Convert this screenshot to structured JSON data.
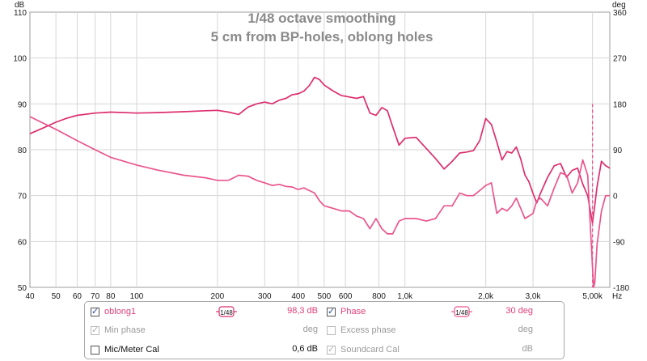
{
  "chart_data": {
    "type": "line",
    "title": "1/48 octave smoothing",
    "subtitle": "5 cm from BP-holes, oblong holes",
    "x_scale": "log",
    "xlim": [
      40,
      5800
    ],
    "ylim": [
      50,
      110
    ],
    "y2lim": [
      -180,
      360
    ],
    "ylabel": "dB",
    "y2label": "deg",
    "xlabel_unit": "Hz",
    "grid": true,
    "x_ticks": [
      "40",
      "50",
      "60",
      "70",
      "80",
      "100",
      "200",
      "300",
      "400",
      "500",
      "600",
      "800",
      "1,0k",
      "2,0k",
      "3,0k",
      "5,00k"
    ],
    "x_tick_values": [
      40,
      50,
      60,
      70,
      80,
      100,
      200,
      300,
      400,
      500,
      600,
      800,
      1000,
      2000,
      3000,
      5000
    ],
    "y_ticks": [
      50,
      60,
      70,
      80,
      90,
      100,
      110
    ],
    "y2_ticks": [
      -180,
      -90,
      0,
      90,
      180,
      270,
      360
    ],
    "series": [
      {
        "name": "oblong1",
        "axis": "left",
        "color": "#dd2e6e",
        "x": [
          40,
          45,
          50,
          55,
          60,
          70,
          80,
          100,
          120,
          150,
          180,
          200,
          220,
          240,
          260,
          280,
          300,
          320,
          340,
          360,
          380,
          400,
          420,
          440,
          460,
          480,
          500,
          540,
          580,
          620,
          660,
          700,
          740,
          780,
          820,
          860,
          900,
          950,
          1000,
          1100,
          1200,
          1300,
          1400,
          1500,
          1600,
          1700,
          1800,
          1900,
          2000,
          2100,
          2200,
          2300,
          2400,
          2500,
          2600,
          2700,
          2800,
          2900,
          3000,
          3100,
          3200,
          3400,
          3600,
          3800,
          4000,
          4200,
          4400,
          4600,
          4800,
          5000,
          5100,
          5200,
          5400,
          5600,
          5800
        ],
        "values": [
          83.5,
          84.8,
          86.0,
          86.9,
          87.5,
          88.0,
          88.2,
          88.0,
          88.1,
          88.3,
          88.5,
          88.6,
          88.2,
          87.7,
          89.3,
          90.0,
          90.4,
          90.0,
          90.8,
          91.2,
          92.0,
          92.2,
          92.8,
          94.0,
          95.8,
          95.3,
          94.1,
          92.8,
          91.8,
          91.5,
          91.2,
          91.6,
          88.0,
          87.5,
          89.2,
          88.5,
          85.0,
          81.0,
          82.5,
          82.7,
          80.3,
          78.1,
          75.8,
          77.5,
          79.3,
          79.5,
          79.8,
          82.0,
          86.8,
          85.5,
          81.7,
          77.8,
          79.6,
          79.3,
          80.6,
          78.0,
          74.5,
          73.0,
          70.5,
          68.4,
          70.5,
          74.0,
          76.5,
          77.0,
          74.0,
          75.5,
          76.0,
          72.5,
          70.0,
          64.0,
          68.0,
          72.0,
          77.5,
          76.5,
          76.0
        ]
      },
      {
        "name": "Phase",
        "axis": "right",
        "color": "#e9558d",
        "x": [
          40,
          50,
          60,
          70,
          80,
          100,
          120,
          150,
          180,
          200,
          220,
          240,
          260,
          280,
          300,
          320,
          340,
          360,
          380,
          400,
          420,
          440,
          460,
          480,
          500,
          540,
          580,
          620,
          660,
          700,
          740,
          780,
          820,
          860,
          900,
          950,
          1000,
          1100,
          1200,
          1300,
          1400,
          1500,
          1600,
          1700,
          1800,
          1900,
          2000,
          2100,
          2200,
          2300,
          2400,
          2500,
          2600,
          2700,
          2800,
          2900,
          3000,
          3100,
          3200,
          3400,
          3600,
          3800,
          4000,
          4200,
          4400,
          4600,
          4800,
          5000,
          5050,
          5100,
          5200,
          5400,
          5600,
          5800
        ],
        "values": [
          155,
          130,
          108,
          90,
          75,
          60,
          50,
          40,
          35,
          30,
          30,
          40,
          38,
          30,
          25,
          20,
          22,
          18,
          17,
          12,
          15,
          10,
          5,
          -10,
          -20,
          -25,
          -30,
          -30,
          -40,
          -45,
          -65,
          -45,
          -65,
          -75,
          -75,
          -50,
          -45,
          -45,
          -50,
          -45,
          -20,
          -20,
          5,
          0,
          0,
          10,
          20,
          25,
          -35,
          -25,
          -30,
          -20,
          -5,
          -25,
          -45,
          -40,
          -35,
          -10,
          -5,
          -20,
          15,
          45,
          40,
          5,
          25,
          70,
          40,
          -140,
          -180,
          -170,
          -95,
          -30,
          0,
          0
        ]
      }
    ]
  },
  "legend": {
    "rows": [
      {
        "left_label": "oblong1",
        "left_value": "98,3 dB",
        "left_smoothing": "1/48",
        "right_label": "Phase",
        "right_value": "30 deg",
        "right_smoothing": "1/48"
      },
      {
        "left_label": "Min phase",
        "left_value": "deg",
        "right_label": "Excess phase",
        "right_value": "deg"
      },
      {
        "left_label": "Mic/Meter Cal",
        "left_value": "0,6 dB",
        "right_label": "Soundcard Cal",
        "right_value": "dB"
      }
    ]
  },
  "colors": {
    "magnitude": "#dd2e6e",
    "phase": "#e9558d",
    "grid": "#d6d6d6",
    "label_pink": "#e0407a"
  }
}
